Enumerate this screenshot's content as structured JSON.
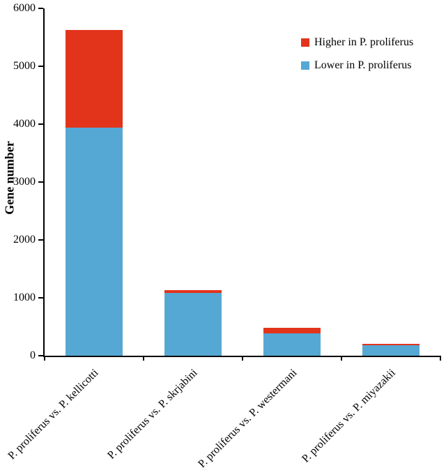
{
  "chart_data": {
    "type": "bar",
    "stacked": true,
    "title": "",
    "ylabel": "Gene number",
    "xlabel": "",
    "ylim": [
      0,
      6000
    ],
    "yticks": [
      0,
      1000,
      2000,
      3000,
      4000,
      5000,
      6000
    ],
    "categories": [
      "P. proliferus vs. P. kellicotti",
      "P. proliferus vs. P. skrjabini",
      "P. proliferus vs. P. westermani",
      "P. proliferus vs. P. miyazakii"
    ],
    "series": [
      {
        "name": "Higher in P. proliferus",
        "color": "#e2341b",
        "values": [
          1690,
          50,
          90,
          30
        ]
      },
      {
        "name": "Lower in P. proliferus",
        "color": "#56a8d4",
        "values": [
          3940,
          1085,
          390,
          180
        ]
      }
    ],
    "totals": [
      5630,
      1135,
      480,
      210
    ],
    "legend_position": "upper right",
    "grid": false,
    "axis_color": "#000000",
    "background": "#ffffff"
  }
}
